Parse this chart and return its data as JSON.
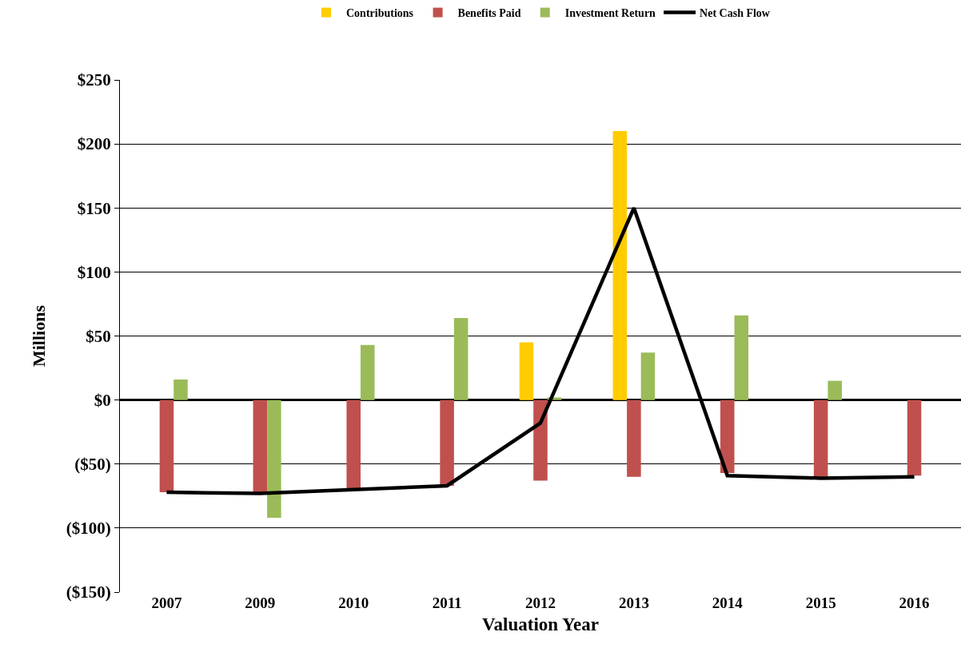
{
  "chart_data": {
    "type": "bar",
    "xlabel": "Valuation Year",
    "ylabel": "Millions",
    "categories": [
      "2007",
      "2009",
      "2010",
      "2011",
      "2012",
      "2013",
      "2014",
      "2015",
      "2016"
    ],
    "series": [
      {
        "name": "Contributions",
        "color": "#ffcc00",
        "values": [
          null,
          null,
          null,
          null,
          45,
          210,
          null,
          null,
          null
        ]
      },
      {
        "name": "Benefits Paid",
        "color": "#c0504d",
        "values": [
          -72,
          -72,
          -69,
          -67,
          -63,
          -60,
          -57,
          -60,
          -59
        ]
      },
      {
        "name": "Investment Return",
        "color": "#9bbb59",
        "values": [
          16,
          -92,
          43,
          64,
          2,
          37,
          66,
          15,
          null
        ]
      },
      {
        "name": "Net Cash Flow",
        "type": "line",
        "color": "#000000",
        "values": [
          -72,
          -73,
          -70,
          -67,
          -18,
          150,
          -59,
          -61,
          -60
        ]
      }
    ],
    "ylim": [
      -150,
      250
    ],
    "yticks": [
      {
        "value": -150,
        "label": "($150)"
      },
      {
        "value": -100,
        "label": "($100)"
      },
      {
        "value": -50,
        "label": "($50)"
      },
      {
        "value": 0,
        "label": "$0"
      },
      {
        "value": 50,
        "label": "$50"
      },
      {
        "value": 100,
        "label": "$100"
      },
      {
        "value": 150,
        "label": "$150"
      },
      {
        "value": 200,
        "label": "$200"
      },
      {
        "value": 250,
        "label": "$250"
      }
    ],
    "grid": "y",
    "legend": "top",
    "line_style": "solid",
    "marker": "none"
  }
}
